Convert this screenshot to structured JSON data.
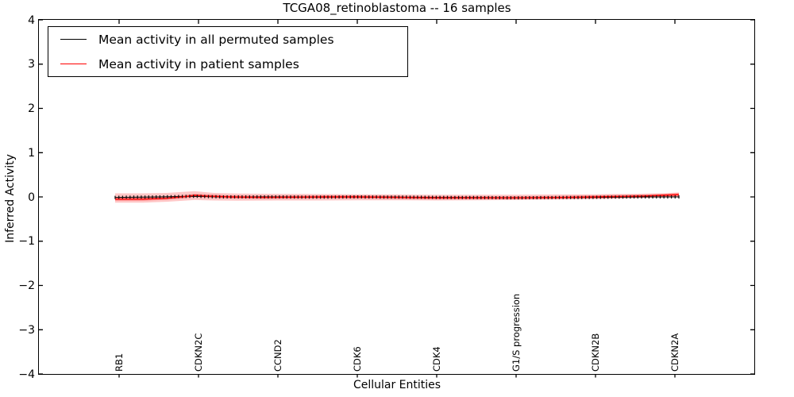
{
  "title": "TCGA08_retinoblastoma -- 16 samples",
  "axes": {
    "xlabel": "Cellular Entities",
    "ylabel": "Inferred Activity",
    "ytick_labels": [
      "4",
      "3",
      "2",
      "1",
      "0",
      "−1",
      "−2",
      "−3",
      "−4"
    ]
  },
  "legend": {
    "items": [
      {
        "label": "Mean activity in all permuted samples",
        "color": "#000000"
      },
      {
        "label": "Mean activity in patient samples",
        "color": "#ff0000"
      }
    ]
  },
  "chart_data": {
    "type": "line",
    "title": "TCGA08_retinoblastoma -- 16 samples",
    "xlabel": "Cellular Entities",
    "ylabel": "Inferred Activity",
    "ylim": [
      -4,
      4
    ],
    "yticks": [
      4,
      3,
      2,
      1,
      0,
      -1,
      -2,
      -3,
      -4
    ],
    "grid": false,
    "legend_position": "upper left",
    "categories": [
      "RB1",
      "CDKN2C",
      "CCND2",
      "CDK6",
      "CDK4",
      "G1/S progression",
      "CDKN2B",
      "CDKN2A"
    ],
    "n_points": 152,
    "series": [
      {
        "name": "Mean activity in all permuted samples",
        "color": "#000000",
        "style": "line-with-tick-markers",
        "points": [
          [
            -0.05,
            -0.01
          ],
          [
            0.5,
            0.0
          ],
          [
            0.95,
            0.015
          ],
          [
            1.3,
            0.0
          ],
          [
            2.0,
            0.0
          ],
          [
            2.5,
            -0.005
          ],
          [
            3.0,
            0.0
          ],
          [
            3.5,
            -0.005
          ],
          [
            4.0,
            -0.01
          ],
          [
            4.5,
            -0.015
          ],
          [
            5.0,
            -0.02
          ],
          [
            5.5,
            -0.015
          ],
          [
            6.0,
            -0.01
          ],
          [
            6.5,
            0.0
          ],
          [
            7.05,
            0.0
          ]
        ]
      },
      {
        "name": "Mean activity in patient samples",
        "color": "#ff0000",
        "style": "line-with-band",
        "points": [
          [
            -0.05,
            -0.05
          ],
          [
            0.3,
            -0.05
          ],
          [
            0.6,
            -0.03
          ],
          [
            0.85,
            0.01
          ],
          [
            0.95,
            0.035
          ],
          [
            1.1,
            0.02
          ],
          [
            1.4,
            0.0
          ],
          [
            1.8,
            -0.01
          ],
          [
            2.2,
            -0.005
          ],
          [
            2.6,
            0.0
          ],
          [
            3.0,
            0.0
          ],
          [
            3.5,
            -0.01
          ],
          [
            4.0,
            -0.02
          ],
          [
            4.5,
            -0.02
          ],
          [
            5.0,
            -0.02
          ],
          [
            5.5,
            -0.015
          ],
          [
            6.0,
            0.0
          ],
          [
            6.3,
            0.01
          ],
          [
            6.6,
            0.02
          ],
          [
            6.85,
            0.035
          ],
          [
            7.05,
            0.05
          ]
        ]
      }
    ],
    "band": {
      "color": "#ff0000",
      "outer_alpha": 0.22,
      "inner_alpha": 0.3,
      "inner_halfwidth": 0.035,
      "upper": [
        [
          -0.05,
          0.08
        ],
        [
          0.3,
          0.08
        ],
        [
          0.6,
          0.09
        ],
        [
          0.95,
          0.13
        ],
        [
          1.2,
          0.09
        ],
        [
          1.5,
          0.075
        ],
        [
          2.0,
          0.07
        ],
        [
          2.5,
          0.065
        ],
        [
          3.0,
          0.06
        ],
        [
          3.5,
          0.055
        ],
        [
          4.0,
          0.05
        ],
        [
          4.5,
          0.05
        ],
        [
          5.0,
          0.05
        ],
        [
          5.5,
          0.055
        ],
        [
          6.0,
          0.06
        ],
        [
          6.5,
          0.07
        ],
        [
          6.85,
          0.08
        ],
        [
          7.05,
          0.1
        ]
      ],
      "lower": [
        [
          -0.05,
          -0.13
        ],
        [
          0.3,
          -0.13
        ],
        [
          0.6,
          -0.11
        ],
        [
          0.95,
          -0.07
        ],
        [
          1.2,
          -0.08
        ],
        [
          1.5,
          -0.085
        ],
        [
          2.0,
          -0.08
        ],
        [
          2.5,
          -0.08
        ],
        [
          3.0,
          -0.075
        ],
        [
          3.5,
          -0.075
        ],
        [
          4.0,
          -0.08
        ],
        [
          4.5,
          -0.075
        ],
        [
          5.0,
          -0.07
        ],
        [
          5.5,
          -0.06
        ],
        [
          6.0,
          -0.05
        ],
        [
          6.5,
          -0.03
        ],
        [
          6.85,
          -0.015
        ],
        [
          7.05,
          0.0
        ]
      ]
    }
  }
}
